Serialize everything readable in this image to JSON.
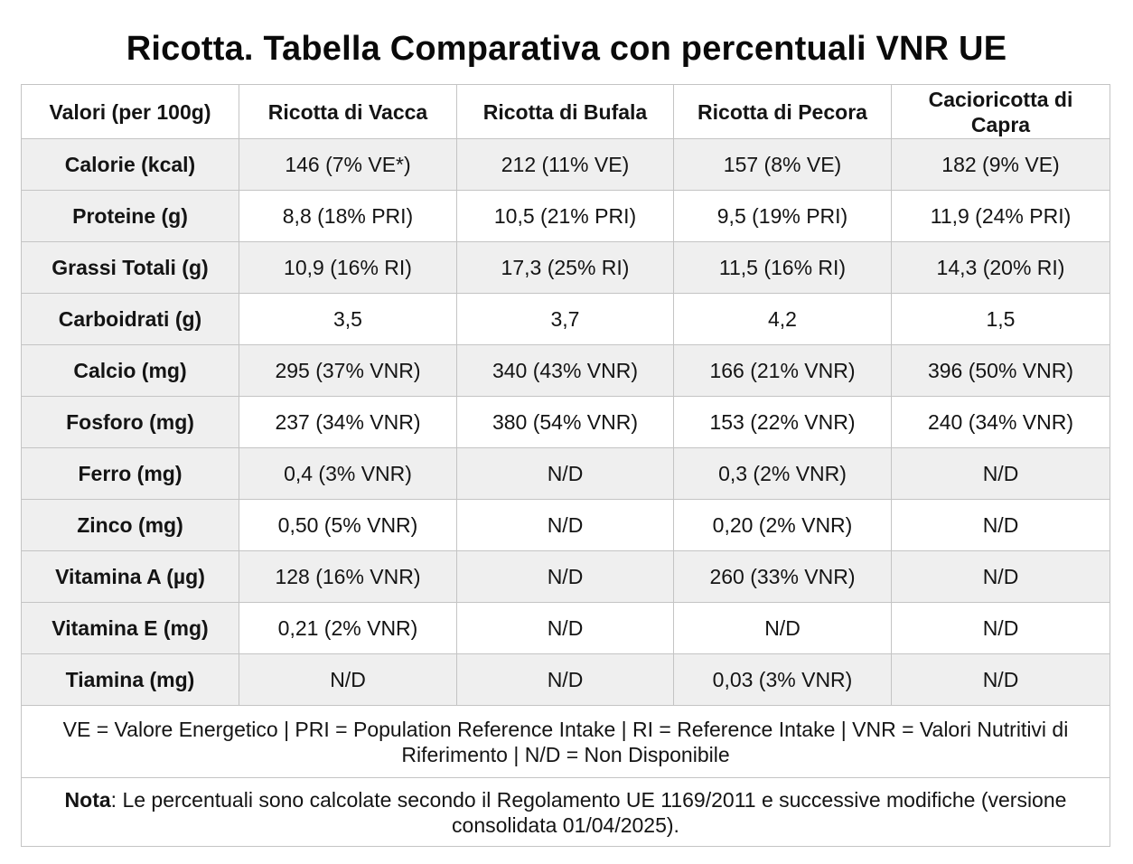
{
  "title": "Ricotta. Tabella Comparativa con percentuali VNR UE",
  "table": {
    "headers": [
      "Valori (per 100g)",
      "Ricotta di Vacca",
      "Ricotta di Bufala",
      "Ricotta di Pecora",
      "Cacioricotta di Capra"
    ],
    "rows": [
      {
        "label": "Calorie (kcal)",
        "cells": [
          "146 (7% VE*)",
          "212 (11% VE)",
          "157 (8% VE)",
          "182 (9% VE)"
        ]
      },
      {
        "label": "Proteine (g)",
        "cells": [
          "8,8 (18% PRI)",
          "10,5 (21% PRI)",
          "9,5 (19% PRI)",
          "11,9 (24% PRI)"
        ]
      },
      {
        "label": "Grassi Totali (g)",
        "cells": [
          "10,9 (16% RI)",
          "17,3 (25% RI)",
          "11,5 (16% RI)",
          "14,3 (20% RI)"
        ]
      },
      {
        "label": "Carboidrati (g)",
        "cells": [
          "3,5",
          "3,7",
          "4,2",
          "1,5"
        ]
      },
      {
        "label": "Calcio (mg)",
        "cells": [
          "295 (37% VNR)",
          "340 (43% VNR)",
          "166 (21% VNR)",
          "396 (50% VNR)"
        ]
      },
      {
        "label": "Fosforo (mg)",
        "cells": [
          "237 (34% VNR)",
          "380 (54% VNR)",
          "153 (22% VNR)",
          "240 (34% VNR)"
        ]
      },
      {
        "label": "Ferro (mg)",
        "cells": [
          "0,4 (3% VNR)",
          "N/D",
          "0,3 (2% VNR)",
          "N/D"
        ]
      },
      {
        "label": "Zinco (mg)",
        "cells": [
          "0,50 (5% VNR)",
          "N/D",
          "0,20 (2% VNR)",
          "N/D"
        ]
      },
      {
        "label": "Vitamina A (µg)",
        "cells": [
          "128 (16% VNR)",
          "N/D",
          "260 (33% VNR)",
          "N/D"
        ]
      },
      {
        "label": "Vitamina E (mg)",
        "cells": [
          "0,21 (2% VNR)",
          "N/D",
          "N/D",
          "N/D"
        ]
      },
      {
        "label": "Tiamina (mg)",
        "cells": [
          "N/D",
          "N/D",
          "0,03 (3% VNR)",
          "N/D"
        ]
      }
    ],
    "legend": "VE = Valore Energetico | PRI = Population Reference Intake | RI = Reference Intake | VNR = Valori Nutritivi di Riferimento | N/D = Non Disponibile",
    "note": {
      "label": "Nota",
      "text": ": Le percentuali sono calcolate secondo il Regolamento UE 1169/2011 e successive modifiche (versione consolidata 01/04/2025)."
    }
  },
  "colors": {
    "shaded_row": "#efefef",
    "border": "#c4c4c4",
    "text": "#141414"
  }
}
